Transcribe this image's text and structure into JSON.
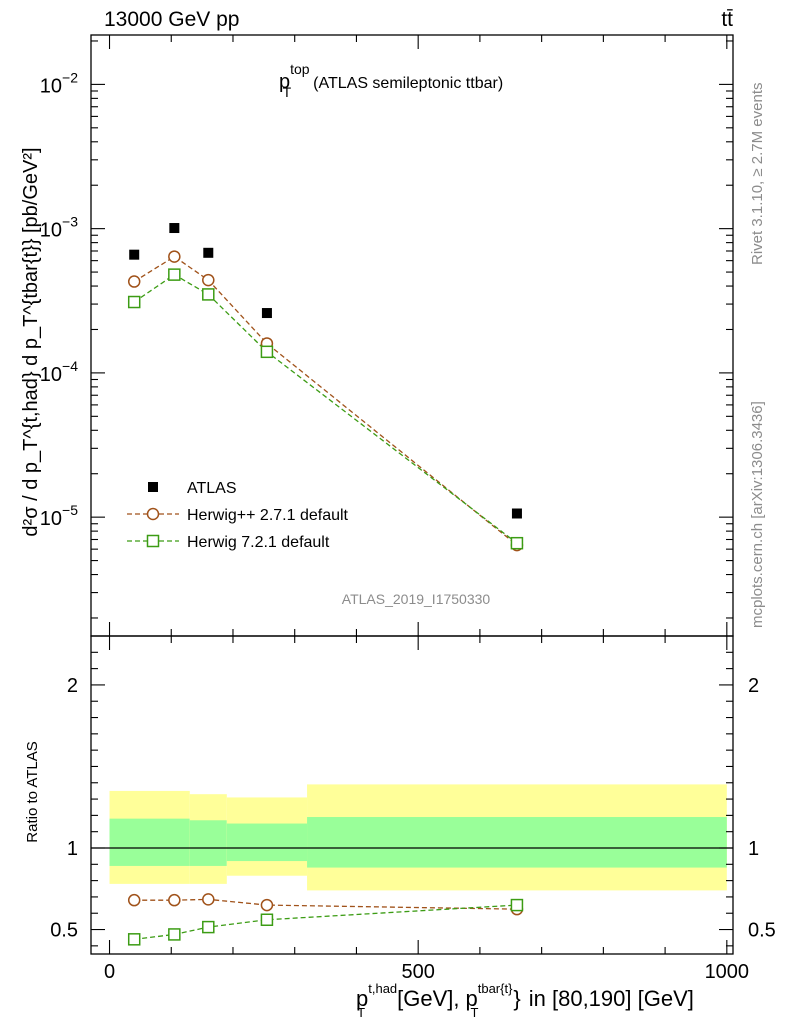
{
  "header": {
    "energy_label": "13000 GeV pp",
    "process_label": "tt̄"
  },
  "side_labels": {
    "rivet": "Rivet 3.1.10, ≥ 2.7M events",
    "mcplots": "mcplots.cern.ch [arXiv:1306.3436]"
  },
  "watermark": "ATLAS_2019_I1750330",
  "chart_data": [
    {
      "type": "scatter",
      "panel": "main",
      "title_main": "p",
      "title_sup": "top",
      "title_sub": "T",
      "title_rest": "(ATLAS semileptonic ttbar)",
      "ylabel": "d²σ / d p_T^{t,had} d p_T^{tbar{t}} [pb/GeV²]",
      "yscale": "log",
      "ylim": [
        1.5e-06,
        0.022
      ],
      "xlim": [
        -30,
        1010
      ],
      "yticks": [
        {
          "value": 1e-05,
          "base": "10",
          "exp": "−5"
        },
        {
          "value": 0.0001,
          "base": "10",
          "exp": "−4"
        },
        {
          "value": 0.001,
          "base": "10",
          "exp": "−3"
        },
        {
          "value": 0.01,
          "base": "10",
          "exp": "−2"
        }
      ],
      "legend_position": "lower-left",
      "series": [
        {
          "name": "ATLAS",
          "marker": "filled-square",
          "color": "#000000",
          "x": [
            40,
            105,
            160,
            255,
            660
          ],
          "y": [
            0.00066,
            0.00101,
            0.00068,
            0.00026,
            1.06e-05
          ]
        },
        {
          "name": "Herwig++ 2.7.1 default",
          "marker": "open-circle",
          "line": "dashed",
          "color": "#a0521a",
          "x": [
            40,
            105,
            160,
            255,
            660
          ],
          "y": [
            0.00043,
            0.00064,
            0.00044,
            0.00016,
            6.4e-06
          ]
        },
        {
          "name": "Herwig 7.2.1 default",
          "marker": "open-square",
          "line": "dashed",
          "color": "#3c9c14",
          "x": [
            40,
            105,
            160,
            255,
            660
          ],
          "y": [
            0.00031,
            0.00048,
            0.00035,
            0.00014,
            6.6e-06
          ]
        }
      ]
    },
    {
      "type": "line",
      "panel": "ratio",
      "ylabel": "Ratio to ATLAS",
      "xlabel": "[GeV],",
      "xlabel_suffix": "in [80,190] [GeV]",
      "xlabel_var1": {
        "main": "p",
        "sup": "t,had",
        "sub": "T"
      },
      "xlabel_var2": {
        "main": "p",
        "sup": "tbar{t}",
        "sub": "T",
        "brace": "}"
      },
      "ylim": [
        0.35,
        2.3
      ],
      "xlim": [
        -30,
        1010
      ],
      "yticks": [
        0.5,
        1,
        2
      ],
      "xticks": [
        0,
        500,
        1000
      ],
      "uncertainty_bands": [
        {
          "x0": 0,
          "x1": 130,
          "inner": [
            0.89,
            1.18
          ],
          "outer": [
            0.78,
            1.35
          ]
        },
        {
          "x0": 130,
          "x1": 190,
          "inner": [
            0.89,
            1.17
          ],
          "outer": [
            0.78,
            1.33
          ]
        },
        {
          "x0": 190,
          "x1": 320,
          "inner": [
            0.92,
            1.15
          ],
          "outer": [
            0.83,
            1.31
          ]
        },
        {
          "x0": 320,
          "x1": 1000,
          "inner": [
            0.88,
            1.19
          ],
          "outer": [
            0.74,
            1.39
          ]
        }
      ],
      "reference_line": 1,
      "series": [
        {
          "name": "Herwig++ 2.7.1 default",
          "marker": "open-circle",
          "color": "#a0521a",
          "x": [
            40,
            105,
            160,
            255,
            660
          ],
          "y": [
            0.68,
            0.68,
            0.685,
            0.65,
            0.625
          ]
        },
        {
          "name": "Herwig 7.2.1 default",
          "marker": "open-square",
          "color": "#3c9c14",
          "x": [
            40,
            105,
            160,
            255,
            660
          ],
          "y": [
            0.44,
            0.47,
            0.515,
            0.56,
            0.65
          ]
        }
      ]
    }
  ],
  "colors": {
    "band_outer": "#ffff99",
    "band_inner": "#99ff99"
  }
}
